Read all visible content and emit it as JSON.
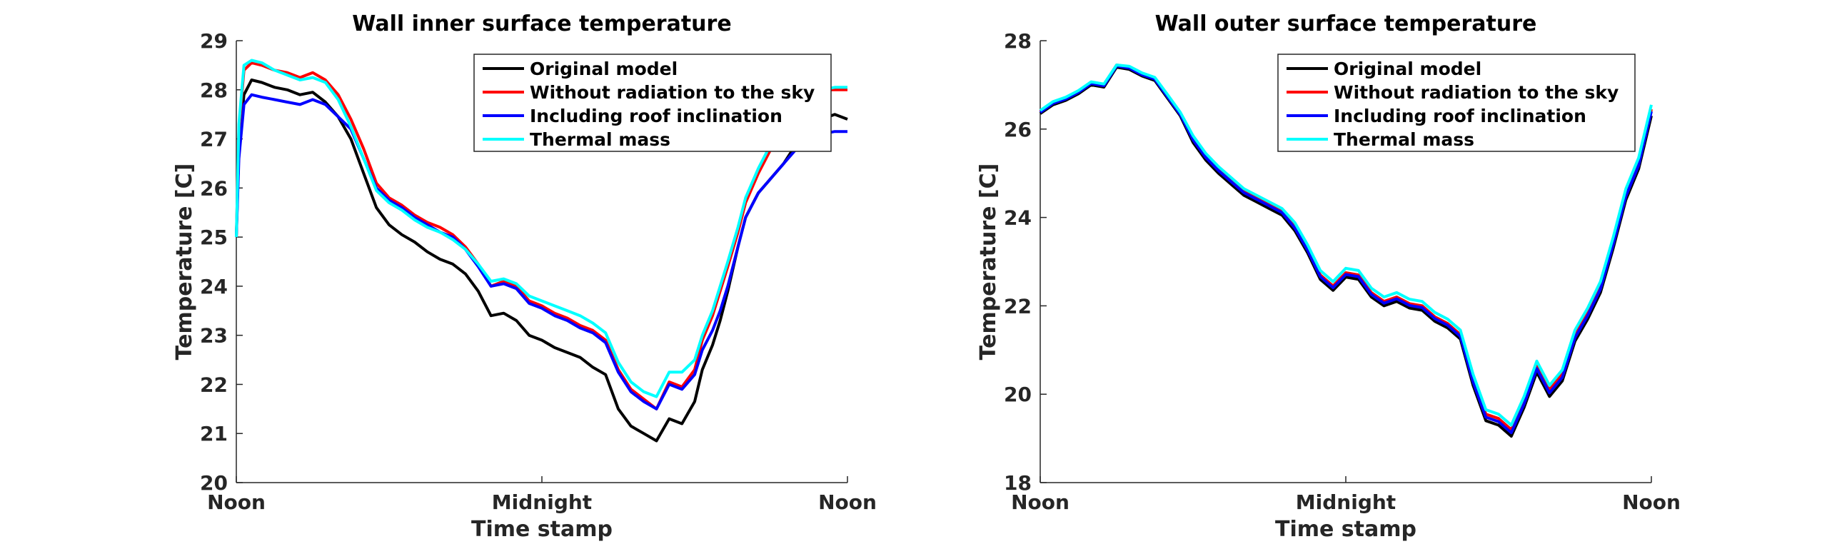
{
  "chart_data": [
    {
      "type": "line",
      "title": "Wall inner surface temperature",
      "xlabel": "Time stamp",
      "ylabel": "Temperature [C]",
      "ylim": [
        20,
        29
      ],
      "yticks": [
        20,
        21,
        22,
        23,
        24,
        25,
        26,
        27,
        28,
        29
      ],
      "xlim": [
        0,
        24
      ],
      "xticks": [
        0,
        12,
        24
      ],
      "xticklabels": [
        "Noon",
        "Midnight",
        "Noon"
      ],
      "x_unit_note": "hours after noon",
      "legend_position": "top-right",
      "grid": false,
      "series": [
        {
          "name": "Original model",
          "color": "#000000",
          "x": [
            0,
            0.1,
            0.3,
            0.6,
            1,
            1.5,
            2,
            2.5,
            3,
            3.5,
            4,
            4.5,
            5,
            5.5,
            6,
            6.5,
            7,
            7.5,
            8,
            8.5,
            9,
            9.5,
            10,
            10.5,
            11,
            11.5,
            12,
            12.5,
            13,
            13.5,
            14,
            14.5,
            15,
            15.5,
            16,
            16.5,
            17,
            17.5,
            18,
            18.3,
            18.7,
            19,
            19.3,
            19.7,
            20,
            20.5,
            21,
            21.5,
            22,
            22.5,
            23,
            23.5,
            24
          ],
          "values": [
            25.0,
            26.8,
            27.9,
            28.2,
            28.15,
            28.05,
            28.0,
            27.9,
            27.95,
            27.75,
            27.45,
            27.0,
            26.3,
            25.6,
            25.25,
            25.05,
            24.9,
            24.7,
            24.55,
            24.45,
            24.25,
            23.9,
            23.4,
            23.45,
            23.3,
            23.0,
            22.9,
            22.75,
            22.65,
            22.55,
            22.35,
            22.2,
            21.5,
            21.15,
            21.0,
            20.85,
            21.3,
            21.2,
            21.65,
            22.3,
            22.8,
            23.3,
            23.9,
            24.8,
            25.4,
            25.9,
            26.2,
            26.5,
            26.9,
            27.2,
            27.4,
            27.5,
            27.4
          ]
        },
        {
          "name": "Without radiation to the sky",
          "color": "#ff0000",
          "x": [
            0,
            0.1,
            0.3,
            0.6,
            1,
            1.5,
            2,
            2.5,
            3,
            3.5,
            4,
            4.5,
            5,
            5.5,
            6,
            6.5,
            7,
            7.5,
            8,
            8.5,
            9,
            9.5,
            10,
            10.5,
            11,
            11.5,
            12,
            12.5,
            13,
            13.5,
            14,
            14.5,
            15,
            15.5,
            16,
            16.5,
            17,
            17.5,
            18,
            18.3,
            18.7,
            19,
            19.3,
            19.7,
            20,
            20.5,
            21,
            21.5,
            22,
            22.5,
            23,
            23.5,
            24
          ],
          "values": [
            25.0,
            27.2,
            28.4,
            28.55,
            28.5,
            28.4,
            28.35,
            28.25,
            28.35,
            28.2,
            27.9,
            27.4,
            26.8,
            26.1,
            25.8,
            25.65,
            25.45,
            25.3,
            25.2,
            25.05,
            24.8,
            24.45,
            24.0,
            24.1,
            24.0,
            23.7,
            23.6,
            23.45,
            23.35,
            23.2,
            23.1,
            22.9,
            22.3,
            21.9,
            21.7,
            21.5,
            22.05,
            21.95,
            22.3,
            22.9,
            23.4,
            23.9,
            24.4,
            25.1,
            25.7,
            26.3,
            26.8,
            27.3,
            27.7,
            28.0,
            28.0,
            28.0,
            28.0
          ]
        },
        {
          "name": "Including roof inclination",
          "color": "#0000ff",
          "x": [
            0,
            0.1,
            0.3,
            0.6,
            1,
            1.5,
            2,
            2.5,
            3,
            3.5,
            4,
            4.5,
            5,
            5.5,
            6,
            6.5,
            7,
            7.5,
            8,
            8.5,
            9,
            9.5,
            10,
            10.5,
            11,
            11.5,
            12,
            12.5,
            13,
            13.5,
            14,
            14.5,
            15,
            15.5,
            16,
            16.5,
            17,
            17.5,
            18,
            18.3,
            18.7,
            19,
            19.3,
            19.7,
            20,
            20.5,
            21,
            21.5,
            22,
            22.5,
            23,
            23.5,
            24
          ],
          "values": [
            25.0,
            26.6,
            27.7,
            27.9,
            27.85,
            27.8,
            27.75,
            27.7,
            27.8,
            27.7,
            27.45,
            27.2,
            26.6,
            26.0,
            25.75,
            25.6,
            25.4,
            25.25,
            25.1,
            25.0,
            24.75,
            24.4,
            24.0,
            24.05,
            23.95,
            23.65,
            23.55,
            23.4,
            23.3,
            23.15,
            23.05,
            22.85,
            22.25,
            21.85,
            21.65,
            21.5,
            22.0,
            21.9,
            22.2,
            22.7,
            23.1,
            23.5,
            24.0,
            24.8,
            25.4,
            25.9,
            26.2,
            26.5,
            26.8,
            27.0,
            27.1,
            27.15,
            27.15
          ]
        },
        {
          "name": "Thermal mass",
          "color": "#00ffff",
          "x": [
            0,
            0.1,
            0.3,
            0.6,
            1,
            1.5,
            2,
            2.5,
            3,
            3.5,
            4,
            4.5,
            5,
            5.5,
            6,
            6.5,
            7,
            7.5,
            8,
            8.5,
            9,
            9.5,
            10,
            10.5,
            11,
            11.5,
            12,
            12.5,
            13,
            13.5,
            14,
            14.5,
            15,
            15.5,
            16,
            16.5,
            17,
            17.5,
            18,
            18.3,
            18.7,
            19,
            19.3,
            19.7,
            20,
            20.5,
            21,
            21.5,
            22,
            22.5,
            23,
            23.5,
            24
          ],
          "values": [
            25.0,
            27.3,
            28.5,
            28.6,
            28.55,
            28.4,
            28.3,
            28.2,
            28.25,
            28.15,
            27.8,
            27.25,
            26.6,
            25.95,
            25.7,
            25.55,
            25.35,
            25.2,
            25.1,
            24.95,
            24.75,
            24.45,
            24.1,
            24.15,
            24.05,
            23.8,
            23.7,
            23.6,
            23.5,
            23.4,
            23.25,
            23.05,
            22.45,
            22.05,
            21.85,
            21.75,
            22.25,
            22.25,
            22.5,
            23.0,
            23.5,
            24.0,
            24.5,
            25.2,
            25.8,
            26.4,
            26.9,
            27.3,
            27.7,
            27.9,
            28.0,
            28.05,
            28.05
          ]
        }
      ]
    },
    {
      "type": "line",
      "title": "Wall outer surface temperature",
      "xlabel": "Time stamp",
      "ylabel": "Temperature [C]",
      "ylim": [
        18,
        28
      ],
      "yticks": [
        18,
        20,
        22,
        24,
        26,
        28
      ],
      "xlim": [
        0,
        24
      ],
      "xticks": [
        0,
        12,
        24
      ],
      "xticklabels": [
        "Noon",
        "Midnight",
        "Noon"
      ],
      "x_unit_note": "hours after noon",
      "legend_position": "top-right",
      "grid": false,
      "series": [
        {
          "name": "Original model",
          "color": "#000000",
          "x": [
            0,
            0.5,
            1,
            1.5,
            2,
            2.5,
            3,
            3.5,
            4,
            4.5,
            5,
            5.5,
            6,
            6.5,
            7,
            7.5,
            8,
            8.5,
            9,
            9.5,
            10,
            10.5,
            11,
            11.5,
            12,
            12.5,
            13,
            13.5,
            14,
            14.5,
            15,
            15.5,
            16,
            16.5,
            17,
            17.5,
            18,
            18.5,
            19,
            19.5,
            20,
            20.5,
            21,
            21.5,
            22,
            22.5,
            23,
            23.5,
            24
          ],
          "values": [
            26.35,
            26.55,
            26.65,
            26.8,
            27.0,
            26.95,
            27.4,
            27.35,
            27.2,
            27.1,
            26.7,
            26.3,
            25.7,
            25.3,
            25.0,
            24.75,
            24.5,
            24.35,
            24.2,
            24.05,
            23.7,
            23.2,
            22.6,
            22.35,
            22.65,
            22.6,
            22.2,
            22.0,
            22.1,
            21.95,
            21.9,
            21.65,
            21.5,
            21.25,
            20.2,
            19.4,
            19.3,
            19.05,
            19.7,
            20.5,
            19.95,
            20.3,
            21.2,
            21.7,
            22.3,
            23.3,
            24.4,
            25.1,
            26.3
          ]
        },
        {
          "name": "Without radiation to the sky",
          "color": "#ff0000",
          "x": [
            0,
            0.5,
            1,
            1.5,
            2,
            2.5,
            3,
            3.5,
            4,
            4.5,
            5,
            5.5,
            6,
            6.5,
            7,
            7.5,
            8,
            8.5,
            9,
            9.5,
            10,
            10.5,
            11,
            11.5,
            12,
            12.5,
            13,
            13.5,
            14,
            14.5,
            15,
            15.5,
            16,
            16.5,
            17,
            17.5,
            18,
            18.5,
            19,
            19.5,
            20,
            20.5,
            21,
            21.5,
            22,
            22.5,
            23,
            23.5,
            24
          ],
          "values": [
            26.4,
            26.6,
            26.7,
            26.85,
            27.05,
            27.0,
            27.45,
            27.4,
            27.25,
            27.15,
            26.75,
            26.35,
            25.8,
            25.4,
            25.1,
            24.85,
            24.6,
            24.45,
            24.3,
            24.15,
            23.8,
            23.3,
            22.7,
            22.45,
            22.75,
            22.7,
            22.3,
            22.1,
            22.2,
            22.05,
            22.0,
            21.75,
            21.6,
            21.35,
            20.35,
            19.55,
            19.45,
            19.2,
            19.85,
            20.65,
            20.1,
            20.45,
            21.35,
            21.85,
            22.45,
            23.45,
            24.55,
            25.25,
            26.45
          ]
        },
        {
          "name": "Including roof inclination",
          "color": "#0000ff",
          "x": [
            0,
            0.5,
            1,
            1.5,
            2,
            2.5,
            3,
            3.5,
            4,
            4.5,
            5,
            5.5,
            6,
            6.5,
            7,
            7.5,
            8,
            8.5,
            9,
            9.5,
            10,
            10.5,
            11,
            11.5,
            12,
            12.5,
            13,
            13.5,
            14,
            14.5,
            15,
            15.5,
            16,
            16.5,
            17,
            17.5,
            18,
            18.5,
            19,
            19.5,
            20,
            20.5,
            21,
            21.5,
            22,
            22.5,
            23,
            23.5,
            24
          ],
          "values": [
            26.38,
            26.58,
            26.68,
            26.83,
            27.03,
            26.98,
            27.43,
            27.38,
            27.23,
            27.13,
            26.73,
            26.33,
            25.76,
            25.36,
            25.06,
            24.81,
            24.56,
            24.41,
            24.26,
            24.11,
            23.76,
            23.26,
            22.66,
            22.41,
            22.71,
            22.66,
            22.26,
            22.06,
            22.16,
            22.01,
            21.96,
            21.71,
            21.56,
            21.31,
            20.28,
            19.48,
            19.38,
            19.13,
            19.78,
            20.58,
            20.03,
            20.38,
            21.28,
            21.78,
            22.38,
            23.38,
            24.48,
            25.18,
            26.4
          ]
        },
        {
          "name": "Thermal mass",
          "color": "#00ffff",
          "x": [
            0,
            0.5,
            1,
            1.5,
            2,
            2.5,
            3,
            3.5,
            4,
            4.5,
            5,
            5.5,
            6,
            6.5,
            7,
            7.5,
            8,
            8.5,
            9,
            9.5,
            10,
            10.5,
            11,
            11.5,
            12,
            12.5,
            13,
            13.5,
            14,
            14.5,
            15,
            15.5,
            16,
            16.5,
            17,
            17.5,
            18,
            18.5,
            19,
            19.5,
            20,
            20.5,
            21,
            21.5,
            22,
            22.5,
            23,
            23.5,
            24
          ],
          "values": [
            26.42,
            26.62,
            26.72,
            26.87,
            27.07,
            27.02,
            27.45,
            27.42,
            27.27,
            27.17,
            26.78,
            26.38,
            25.85,
            25.45,
            25.15,
            24.9,
            24.65,
            24.5,
            24.35,
            24.2,
            23.88,
            23.38,
            22.8,
            22.55,
            22.85,
            22.8,
            22.4,
            22.2,
            22.3,
            22.15,
            22.1,
            21.85,
            21.7,
            21.45,
            20.45,
            19.65,
            19.55,
            19.3,
            19.95,
            20.75,
            20.2,
            20.55,
            21.45,
            21.95,
            22.55,
            23.55,
            24.65,
            25.35,
            26.55
          ]
        }
      ]
    }
  ]
}
